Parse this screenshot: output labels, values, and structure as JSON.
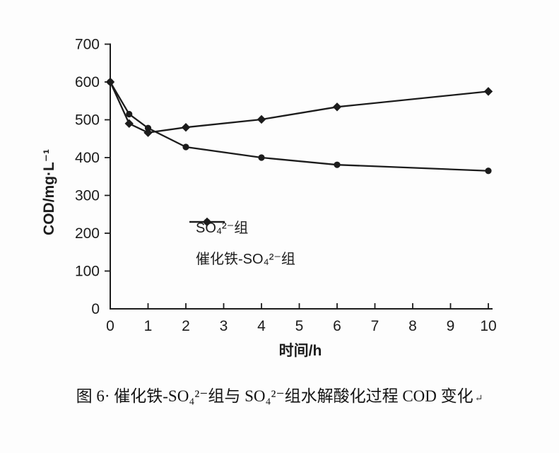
{
  "figure": {
    "caption": "图 6· 催化铁-SO₄²⁻组与 SO₄²⁻组水解酸化过程 COD 变化",
    "caption_return_mark": "↵"
  },
  "chart_data": {
    "type": "line",
    "title": "",
    "xlabel": "时间/h",
    "ylabel": "COD/mg·L⁻¹",
    "x": [
      0,
      0.5,
      1,
      2,
      4,
      6,
      10
    ],
    "series": [
      {
        "name": "SO₄²⁻组",
        "marker": "diamond",
        "color": "#1c1c1c",
        "values": [
          600,
          490,
          466,
          480,
          501,
          534,
          575
        ]
      },
      {
        "name": "催化铁-SO₄²⁻组",
        "marker": "circle",
        "color": "#1c1c1c",
        "values": [
          600,
          515,
          478,
          428,
          400,
          381,
          365
        ]
      }
    ],
    "xlim": [
      0,
      10
    ],
    "ylim": [
      0,
      700
    ],
    "xticks": [
      0,
      1,
      2,
      3,
      4,
      5,
      6,
      7,
      8,
      9,
      10
    ],
    "yticks": [
      0,
      100,
      200,
      300,
      400,
      500,
      600,
      700
    ],
    "grid": false,
    "legend_position": "inside-left-middle",
    "axis_color": "#1c1c1c",
    "background": "#fdfdfd"
  }
}
